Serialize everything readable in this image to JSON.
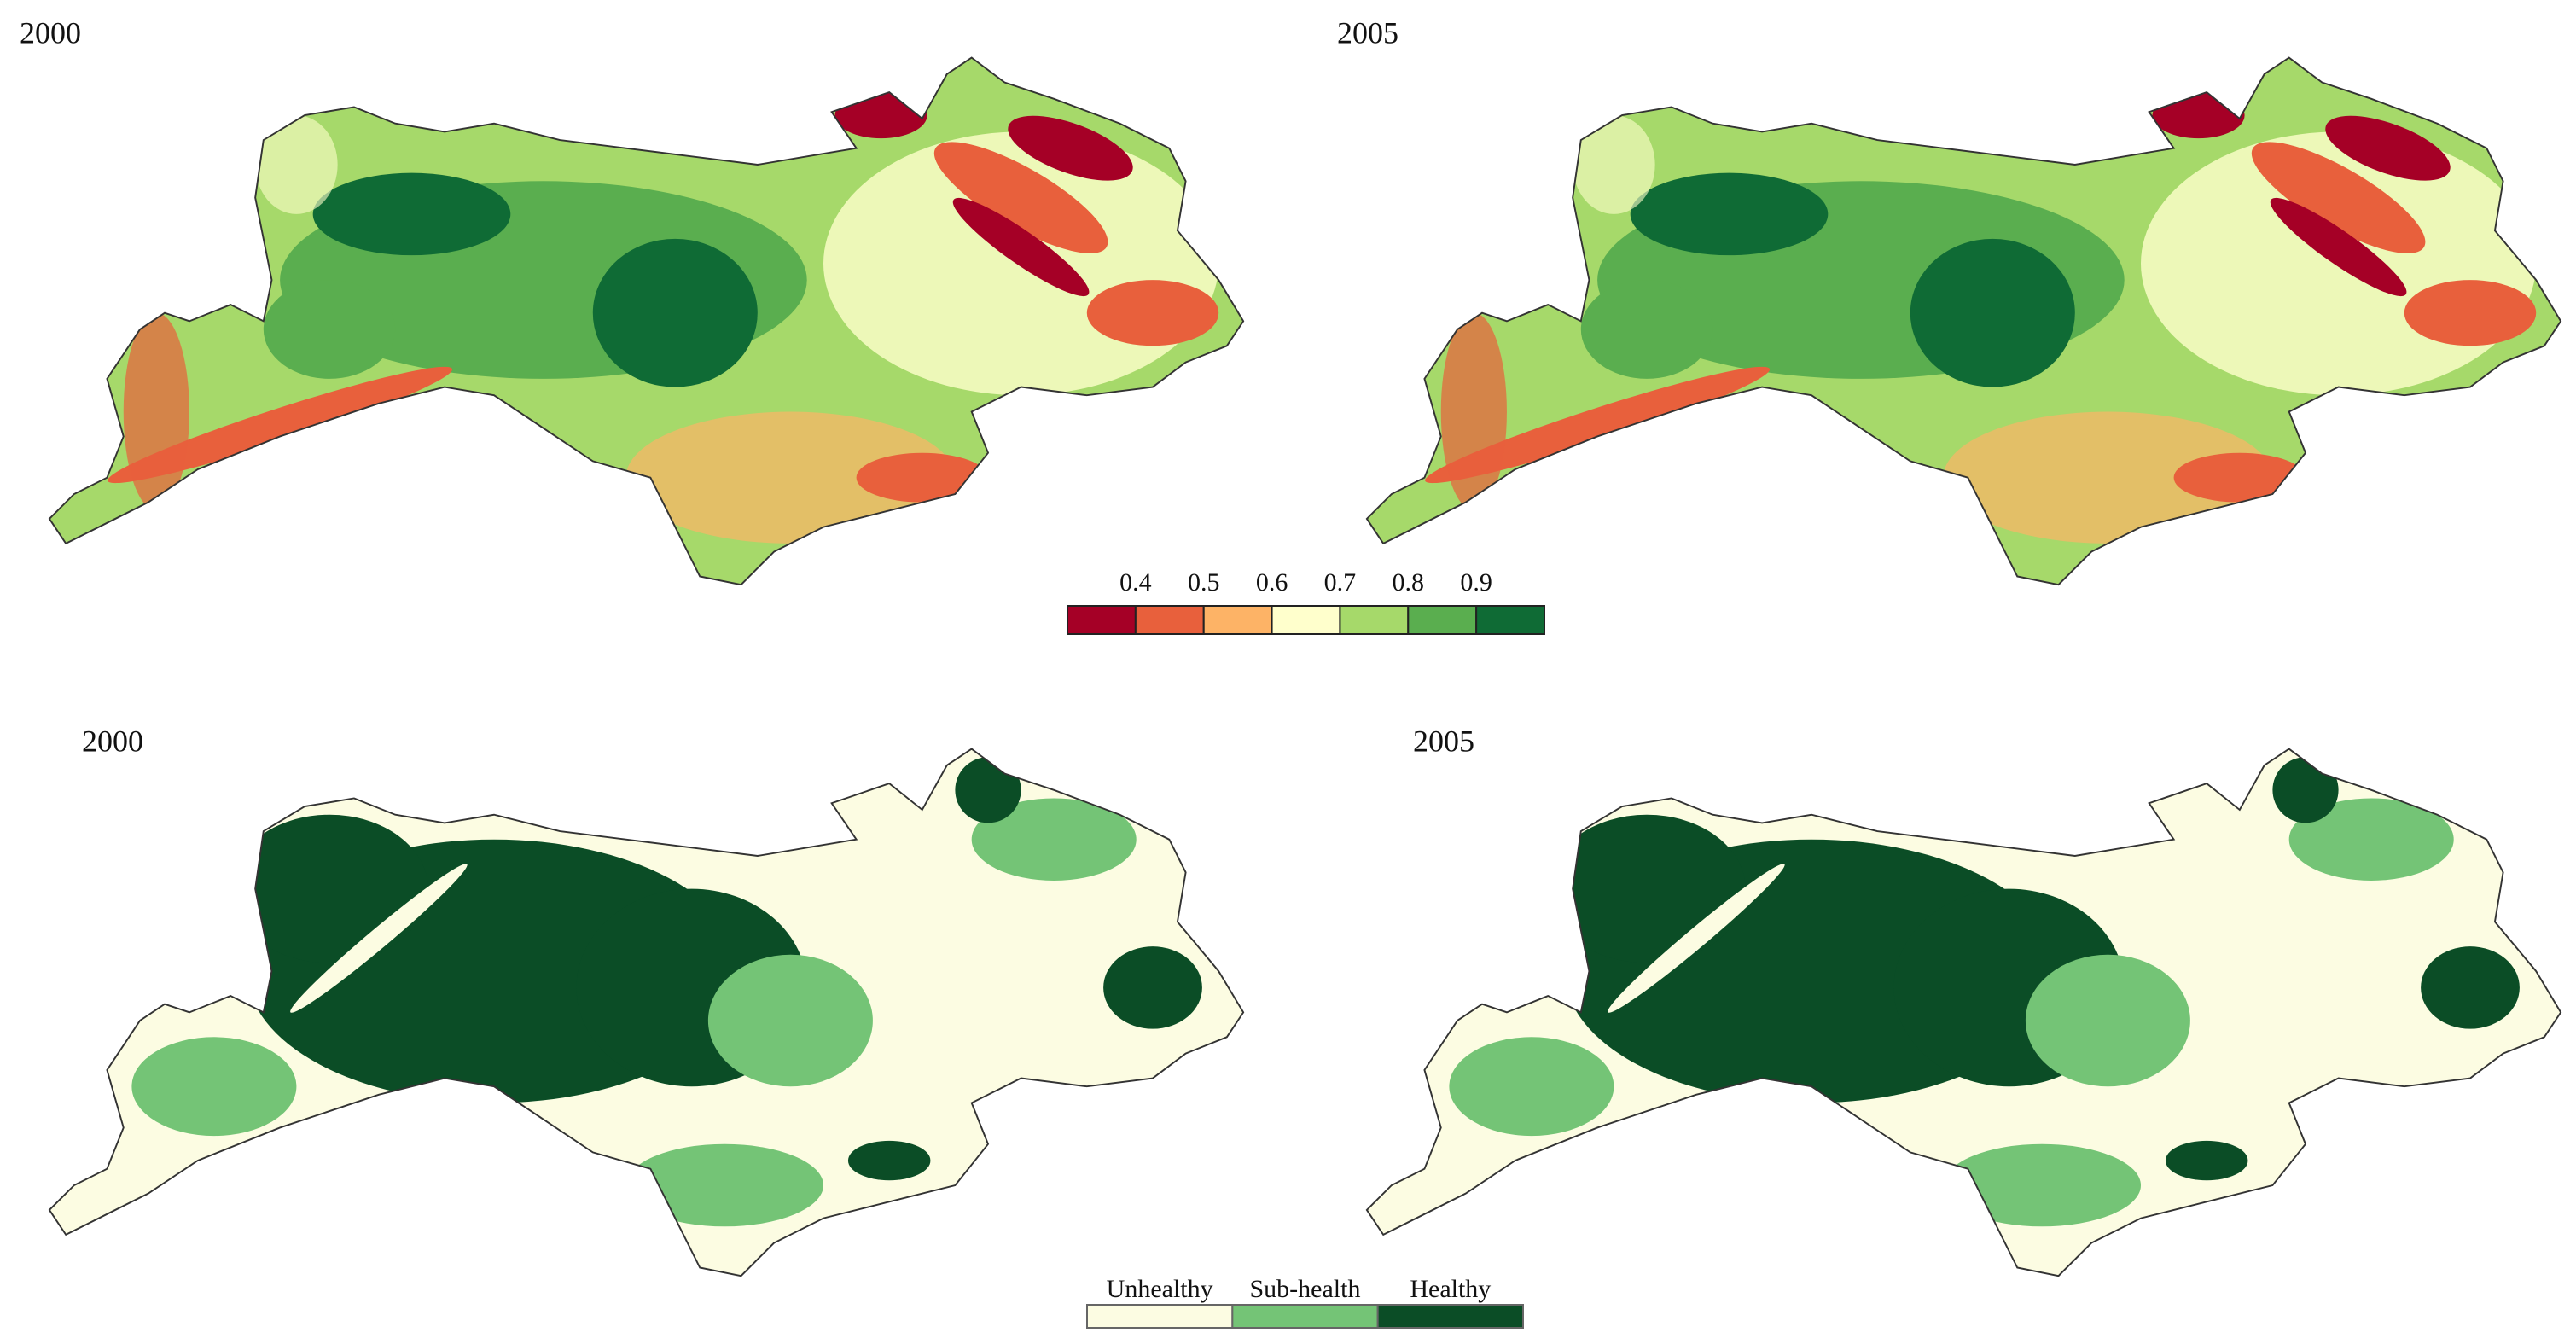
{
  "panels": [
    {
      "year": "2000"
    },
    {
      "year": "2005"
    },
    {
      "year": "2000"
    },
    {
      "year": "2005"
    }
  ],
  "legend_index": {
    "ticks": [
      0.4,
      0.5,
      0.6,
      0.7,
      0.8,
      0.9
    ],
    "colors": [
      "#a50026",
      "#e8603c",
      "#fdb366",
      "#ffffcc",
      "#a6d96a",
      "#5aae4f",
      "#0f6b35"
    ]
  },
  "legend_class": {
    "labels": [
      "Unhealthy",
      "Sub-health",
      "Healthy"
    ],
    "colors": [
      "#fcfce2",
      "#74c476",
      "#0b4d26"
    ]
  }
}
